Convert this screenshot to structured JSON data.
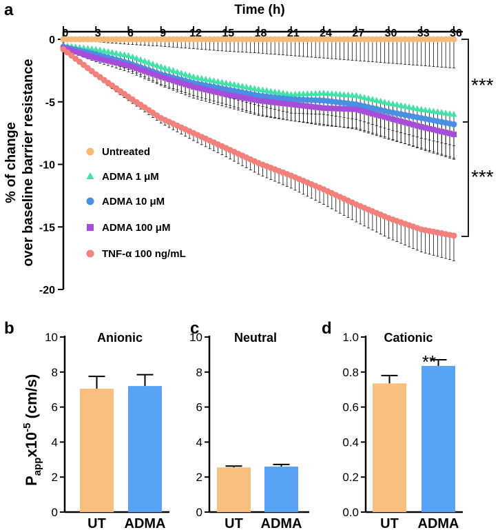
{
  "panels": {
    "a": {
      "label": "a"
    },
    "b": {
      "label": "b"
    },
    "c": {
      "label": "c"
    },
    "d": {
      "label": "d"
    }
  },
  "significance": {
    "sig1": "***",
    "sig2": "***",
    "sig3": "**"
  },
  "chart_data": [
    {
      "panel": "a",
      "type": "line",
      "title": "",
      "xlabel": "Time (h)",
      "ylabel_line1": "% of change",
      "ylabel_line2": "over baseline barrier resistance",
      "x_ticks": [
        "0",
        "3",
        "6",
        "9",
        "12",
        "15",
        "18",
        "21",
        "24",
        "27",
        "30",
        "33",
        "36"
      ],
      "y_ticks": [
        "0",
        "-5",
        "-10",
        "-15",
        "-20"
      ],
      "xlim": [
        0,
        36
      ],
      "ylim": [
        -20,
        0
      ],
      "x_axis_position": "top",
      "legend_position": "lower-left",
      "series": [
        {
          "name": "Untreated",
          "color": "#F5B978",
          "marker": "circle",
          "x": [
            0,
            3,
            6,
            9,
            12,
            15,
            18,
            21,
            24,
            27,
            30,
            33,
            36
          ],
          "values": [
            0,
            0,
            0,
            0,
            0,
            0,
            0,
            0,
            0,
            0,
            0,
            0,
            0
          ],
          "sem": [
            0,
            0.2,
            0.4,
            0.55,
            0.75,
            0.95,
            1.1,
            1.3,
            1.5,
            1.7,
            1.9,
            2.1,
            2.3
          ]
        },
        {
          "name": "ADMA 1 μM",
          "color": "#3FE3A8",
          "marker": "triangle",
          "x": [
            0,
            3,
            6,
            9,
            12,
            15,
            18,
            21,
            24,
            27,
            30,
            33,
            36
          ],
          "values": [
            -0.5,
            -0.8,
            -1.3,
            -2.2,
            -3.0,
            -3.5,
            -4.0,
            -4.4,
            -4.3,
            -4.5,
            -5.1,
            -5.6,
            -6.0
          ],
          "sem": [
            0.1,
            0.3,
            0.5,
            0.7,
            0.9,
            1.1,
            1.3,
            1.5,
            1.7,
            1.9,
            2.1,
            2.3,
            2.5
          ]
        },
        {
          "name": "ADMA 10 μM",
          "color": "#4A90E2",
          "marker": "circle",
          "x": [
            0,
            3,
            6,
            9,
            12,
            15,
            18,
            21,
            24,
            27,
            30,
            33,
            36
          ],
          "values": [
            -0.6,
            -1.2,
            -1.9,
            -2.8,
            -3.5,
            -4.0,
            -4.5,
            -4.8,
            -4.9,
            -5.2,
            -5.8,
            -6.3,
            -6.8
          ],
          "sem": [
            0.1,
            0.3,
            0.5,
            0.8,
            1.0,
            1.2,
            1.5,
            1.7,
            1.9,
            2.0,
            2.2,
            2.4,
            2.7
          ]
        },
        {
          "name": "ADMA 100 μM",
          "color": "#A64DD9",
          "marker": "square",
          "x": [
            0,
            3,
            6,
            9,
            12,
            15,
            18,
            21,
            24,
            27,
            30,
            33,
            36
          ],
          "values": [
            -0.7,
            -1.5,
            -2.1,
            -3.0,
            -3.8,
            -4.4,
            -4.9,
            -5.2,
            -5.5,
            -5.6,
            -6.3,
            -7.0,
            -7.6
          ],
          "sem": [
            0.1,
            0.3,
            0.5,
            0.7,
            0.9,
            1.0,
            1.2,
            1.3,
            1.4,
            1.5,
            1.6,
            1.8,
            2.0
          ]
        },
        {
          "name": "TNF-α 100 ng/mL",
          "color": "#F2807B",
          "marker": "circle",
          "x": [
            0,
            3,
            6,
            9,
            12,
            15,
            18,
            21,
            24,
            27,
            30,
            33,
            36
          ],
          "values": [
            -0.8,
            -2.8,
            -4.6,
            -6.3,
            -7.5,
            -8.7,
            -9.9,
            -10.9,
            -12.0,
            -13.2,
            -14.3,
            -15.2,
            -15.7
          ],
          "sem": [
            0.1,
            0.2,
            0.3,
            0.4,
            0.6,
            0.7,
            0.9,
            1.0,
            1.2,
            1.4,
            1.6,
            1.8,
            2.0
          ]
        }
      ]
    },
    {
      "panel": "b",
      "type": "bar",
      "title": "Anionic",
      "ylabel": "P_app x10^-5 (cm/s)",
      "ylabel_main": "P",
      "ylabel_sub": "app",
      "ylabel_mid": "x10",
      "ylabel_sup": "-5",
      "ylabel_unit": " (cm/s)",
      "categories": [
        "UT",
        "ADMA"
      ],
      "values": [
        7.05,
        7.2
      ],
      "errors": [
        0.7,
        0.65
      ],
      "colors": [
        "#F8BF7E",
        "#58A3F5"
      ],
      "ylim": [
        0,
        10
      ],
      "y_ticks": [
        "0",
        "2",
        "4",
        "6",
        "8",
        "10"
      ]
    },
    {
      "panel": "c",
      "type": "bar",
      "title": "Neutral",
      "categories": [
        "UT",
        "ADMA"
      ],
      "values": [
        2.55,
        2.6
      ],
      "errors": [
        0.08,
        0.12
      ],
      "colors": [
        "#F8BF7E",
        "#58A3F5"
      ],
      "ylim": [
        0,
        10
      ],
      "y_ticks": [
        "0",
        "2",
        "4",
        "6",
        "8",
        "10"
      ]
    },
    {
      "panel": "d",
      "type": "bar",
      "title": "Cationic",
      "categories": [
        "UT",
        "ADMA"
      ],
      "values": [
        0.735,
        0.835
      ],
      "errors": [
        0.045,
        0.035
      ],
      "colors": [
        "#F8BF7E",
        "#58A3F5"
      ],
      "ylim": [
        0,
        1.0
      ],
      "y_ticks": [
        "0.0",
        "0.2",
        "0.4",
        "0.6",
        "0.8",
        "1.0"
      ]
    }
  ]
}
